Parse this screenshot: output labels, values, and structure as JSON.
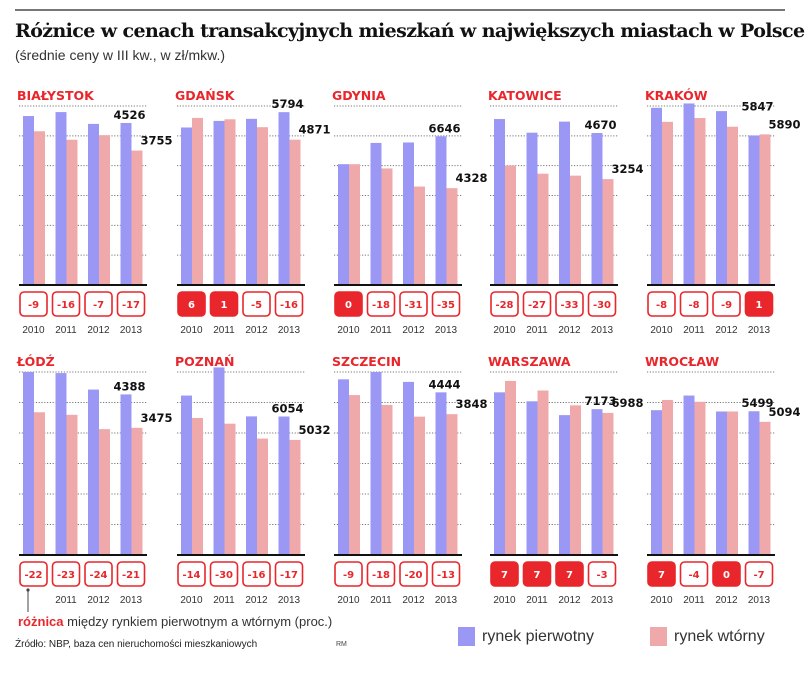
{
  "header": {
    "title": "Różnice w cenach transakcyjnych mieszkań w największych miastach w Polsce",
    "subtitle": "(średnie ceny w III kw., w zł/mkw.)"
  },
  "footer": {
    "note_highlight": "różnica",
    "note_rest": " między rynkiem pierwotnym a wtórnym (proc.)",
    "source": "Źródło: NBP, baza cen nieruchomości mieszkaniowych",
    "credit": "RM"
  },
  "colors": {
    "primary": "#9b98f5",
    "secondary": "#f0a9ab",
    "accent": "#e8262b"
  },
  "chart_data": {
    "type": "bar",
    "title": "Różnice w cenach transakcyjnych mieszkań w największych miastach w Polsce",
    "subtitle": "(średnie ceny w III kw., w zł/mkw.)",
    "categories": [
      "2010",
      "2011",
      "2012",
      "2013"
    ],
    "legend": [
      {
        "key": "primary",
        "label": "rynek pierwotny"
      },
      {
        "key": "secondary",
        "label": "rynek wtórny"
      }
    ],
    "legend_position": "bottom-right",
    "grid": true,
    "panels": [
      {
        "city": "BIAŁYSTOK",
        "ymax": 5000,
        "primary": [
          4720,
          4830,
          4500,
          4526
        ],
        "secondary": [
          4295,
          4057,
          4185,
          3755
        ],
        "diff": [
          -9,
          -16,
          -7,
          -17
        ],
        "label_primary": "4526",
        "label_secondary": "3755"
      },
      {
        "city": "GDAŃSK",
        "ymax": 6000,
        "primary": [
          5280,
          5500,
          5570,
          5794
        ],
        "secondary": [
          5600,
          5555,
          5290,
          4871
        ],
        "diff": [
          6,
          1,
          -5,
          -16
        ],
        "label_primary": "5794",
        "label_secondary": "4871"
      },
      {
        "city": "GDYNIA",
        "ymax": 8000,
        "primary": [
          5400,
          6350,
          6370,
          6646
        ],
        "secondary": [
          5400,
          5210,
          4400,
          4328
        ],
        "diff": [
          0,
          -18,
          -31,
          -35
        ],
        "label_primary": "6646",
        "label_secondary": "4328"
      },
      {
        "city": "KATOWICE",
        "ymax": 5500,
        "primary": [
          5100,
          4680,
          5020,
          4670
        ],
        "secondary": [
          3670,
          3420,
          3360,
          3254
        ],
        "diff": [
          -28,
          -27,
          -33,
          -30
        ],
        "label_primary": "4670",
        "label_secondary": "3254"
      },
      {
        "city": "KRAKÓW",
        "ymax": 7000,
        "primary": [
          6930,
          7100,
          6800,
          5847
        ],
        "secondary": [
          6380,
          6530,
          6190,
          5890
        ],
        "diff": [
          -8,
          -8,
          -9,
          1
        ],
        "label_primary": "5847",
        "label_secondary": "5890"
      },
      {
        "city": "ŁÓDŹ",
        "ymax": 5000,
        "primary": [
          5000,
          4970,
          4520,
          4388
        ],
        "secondary": [
          3900,
          3830,
          3440,
          3475
        ],
        "diff": [
          -22,
          -23,
          -24,
          -21
        ],
        "label_primary": "4388",
        "label_secondary": "3475"
      },
      {
        "city": "POZNAŃ",
        "ymax": 8000,
        "primary": [
          6970,
          8200,
          6060,
          6054
        ],
        "secondary": [
          5990,
          5740,
          5090,
          5032
        ],
        "diff": [
          -14,
          -30,
          -16,
          -17
        ],
        "label_primary": "6054",
        "label_secondary": "5032"
      },
      {
        "city": "SZCZECIN",
        "ymax": 5000,
        "primary": [
          4800,
          5000,
          4730,
          4444
        ],
        "secondary": [
          4370,
          4100,
          3780,
          3848
        ],
        "diff": [
          -9,
          -18,
          -20,
          -13
        ],
        "label_primary": "4444",
        "label_secondary": "3848"
      },
      {
        "city": "WARSZAWA",
        "ymax": 9000,
        "primary": [
          8000,
          7560,
          6880,
          7173
        ],
        "secondary": [
          8560,
          8090,
          7360,
          6988
        ],
        "diff": [
          7,
          7,
          7,
          -3
        ],
        "label_primary": "7173",
        "label_secondary": "6988"
      },
      {
        "city": "WROCŁAW",
        "ymax": 7000,
        "primary": [
          5540,
          6100,
          5490,
          5499
        ],
        "secondary": [
          5930,
          5860,
          5490,
          5094
        ],
        "diff": [
          7,
          -4,
          0,
          -7
        ],
        "label_primary": "5499",
        "label_secondary": "5094"
      }
    ]
  }
}
